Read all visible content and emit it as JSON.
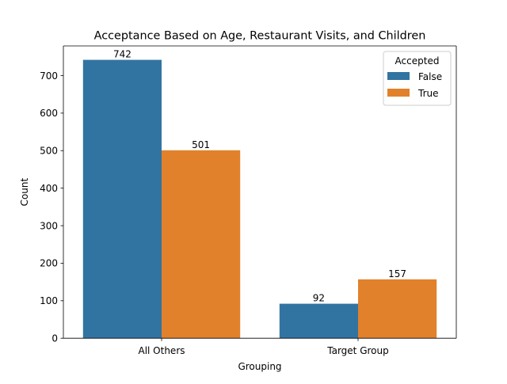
{
  "chart_data": {
    "type": "bar",
    "title": "Acceptance Based on Age, Restaurant Visits, and Children",
    "xlabel": "Grouping",
    "ylabel": "Count",
    "categories": [
      "All Others",
      "Target Group"
    ],
    "series": [
      {
        "name": "False",
        "values": [
          742,
          92
        ],
        "color": "#3274a1"
      },
      {
        "name": "True",
        "values": [
          501,
          157
        ],
        "color": "#e1812c"
      }
    ],
    "ylim": [
      0,
      779.1
    ],
    "yticks": [
      0,
      100,
      200,
      300,
      400,
      500,
      600,
      700
    ],
    "legend": {
      "title": "Accepted",
      "position": "top-right"
    },
    "grid": false,
    "data_labels": true
  }
}
